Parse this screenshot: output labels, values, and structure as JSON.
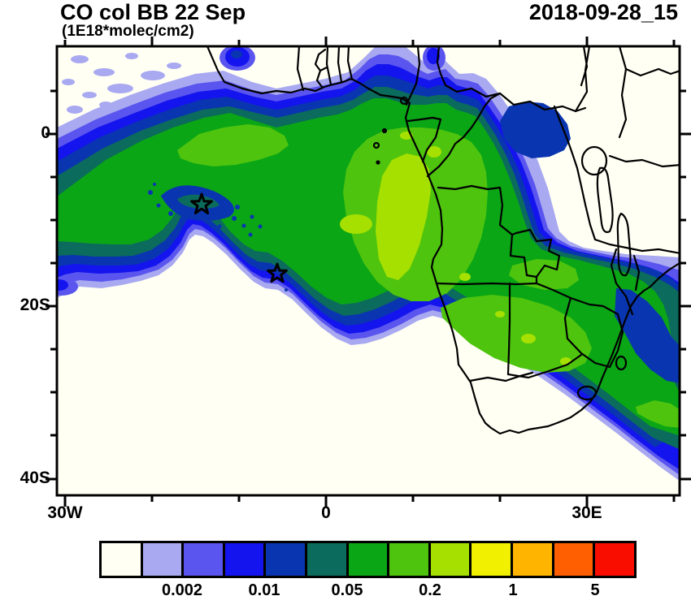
{
  "header": {
    "title": "CO col BB 22 Sep",
    "units": "(1E18*molec/cm2)",
    "timestamp": "2018-09-28_15"
  },
  "axes": {
    "y_tick_labels": [
      "0",
      "20S",
      "40S"
    ],
    "x_tick_labels": [
      "30W",
      "0",
      "30E"
    ]
  },
  "colorbar_labels": [
    "0.002",
    "0.01",
    "0.05",
    "0.2",
    "1",
    "5"
  ],
  "chart_data": {
    "type": "heatmap",
    "subtype": "filled-contour-geographic-map",
    "title": "CO col BB 22 Sep",
    "units": "1E18*molec/cm2",
    "timestamp": "2018-09-28_15",
    "region": "South Atlantic and southern Africa",
    "x_axis": {
      "name": "longitude",
      "tick_labels": [
        "30W",
        "0",
        "30E"
      ],
      "approx_range": [
        "31W",
        "40E"
      ],
      "minor_tick_interval_deg": 10
    },
    "y_axis": {
      "name": "latitude",
      "tick_labels": [
        "0",
        "20S",
        "40S"
      ],
      "approx_range": [
        "42S",
        "10N"
      ],
      "minor_tick_interval_deg": 5
    },
    "colorbar": {
      "orientation": "horizontal",
      "position": "bottom",
      "n_bins": 13,
      "colors": [
        "#fffff4",
        "#a9a9f1",
        "#5a55ee",
        "#1414ee",
        "#0a35b0",
        "#0b6b5c",
        "#0aa616",
        "#4ec40e",
        "#a5e000",
        "#f0f000",
        "#ffb400",
        "#ff5f00",
        "#f90d00"
      ],
      "labeled_boundaries": [
        "0.002",
        "0.01",
        "0.05",
        "0.2",
        "1",
        "5"
      ]
    },
    "markers": [
      {
        "shape": "star",
        "approx_lon": "14.5W",
        "approx_lat": "8S"
      },
      {
        "shape": "star",
        "approx_lon": "6W",
        "approx_lat": "16S"
      }
    ],
    "description": "Smoke CO plume arcs from the tropical South Atlantic across Angola/DRC toward the Mozambique Channel; peak values (0.2-0.5) offshore Angola; clean air to the southwest and northeast."
  }
}
